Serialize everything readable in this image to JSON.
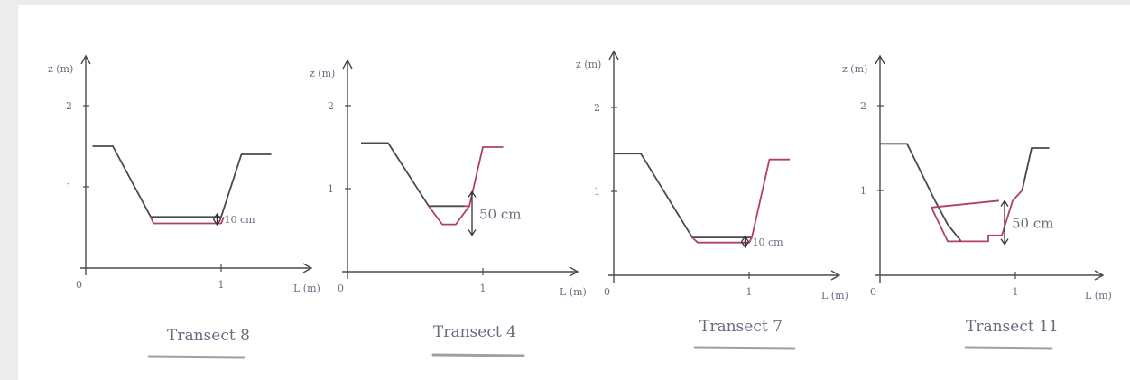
{
  "page": {
    "background": "#ececec",
    "paper": "#ffffff",
    "pencil_color": "#4a4a4a",
    "red_color": "#b0425e"
  },
  "chart_data": [
    {
      "type": "line",
      "title": "Transect 8",
      "xlabel": "L (m)",
      "ylabel": "z (m)",
      "xlim": [
        0,
        1.7
      ],
      "ylim": [
        0,
        2.4
      ],
      "x_ticks": [
        "0",
        "1"
      ],
      "y_ticks": [
        "1",
        "2"
      ],
      "series": [
        {
          "color": "#4a4a4a",
          "x": [
            0.05,
            0.2,
            0.48,
            1.0,
            1.15,
            1.37
          ],
          "y": [
            1.5,
            1.5,
            0.63,
            0.63,
            1.4,
            1.4
          ]
        },
        {
          "color": "#b0425e",
          "x": [
            0.48,
            0.5,
            1.0,
            1.02
          ],
          "y": [
            0.63,
            0.55,
            0.55,
            0.63
          ]
        }
      ],
      "annotations": [
        {
          "text": "10 cm",
          "x": 1.05,
          "y": 0.6
        }
      ]
    },
    {
      "type": "line",
      "title": "Transect 4",
      "xlabel": "L (m)",
      "ylabel": "z (m)",
      "xlim": [
        0,
        1.7
      ],
      "ylim": [
        0,
        2.4
      ],
      "x_ticks": [
        "0",
        "1"
      ],
      "y_ticks": [
        "1",
        "2"
      ],
      "series": [
        {
          "color": "#4a4a4a",
          "x": [
            0.1,
            0.3,
            0.6,
            0.86
          ],
          "y": [
            1.55,
            1.55,
            0.79,
            0.79
          ]
        },
        {
          "color": "#b0425e",
          "x": [
            0.86,
            0.9,
            1.0,
            1.15
          ],
          "y": [
            0.79,
            0.79,
            1.5,
            1.5
          ]
        },
        {
          "color": "#b0425e",
          "x": [
            0.6,
            0.7,
            0.8,
            0.9
          ],
          "y": [
            0.79,
            0.57,
            0.57,
            0.79
          ]
        }
      ],
      "annotations": [
        {
          "text": "50 cm",
          "x": 1.0,
          "y": 0.68
        }
      ]
    },
    {
      "type": "line",
      "title": "Transect 7",
      "xlabel": "L (m)",
      "ylabel": "z (m)",
      "xlim": [
        0,
        1.7
      ],
      "ylim": [
        0,
        2.4
      ],
      "x_ticks": [
        "0",
        "1"
      ],
      "y_ticks": [
        "1",
        "2"
      ],
      "series": [
        {
          "color": "#4a4a4a",
          "x": [
            0.0,
            0.2,
            0.58,
            1.02
          ],
          "y": [
            1.45,
            1.45,
            0.45,
            0.45
          ]
        },
        {
          "color": "#b0425e",
          "x": [
            0.58,
            0.62,
            1.0,
            1.02,
            1.15,
            1.3
          ],
          "y": [
            0.45,
            0.39,
            0.39,
            0.45,
            1.38,
            1.38
          ]
        }
      ],
      "annotations": [
        {
          "text": "10 cm",
          "x": 1.05,
          "y": 0.4
        }
      ]
    },
    {
      "type": "line",
      "title": "Transect 11",
      "xlabel": "L (m)",
      "ylabel": "z (m)",
      "xlim": [
        0,
        1.7
      ],
      "ylim": [
        0,
        2.4
      ],
      "x_ticks": [
        "0",
        "1"
      ],
      "y_ticks": [
        "1",
        "2"
      ],
      "series": [
        {
          "color": "#4a4a4a",
          "x": [
            0.0,
            0.2,
            0.4,
            0.5,
            0.6
          ],
          "y": [
            1.55,
            1.55,
            0.9,
            0.6,
            0.4
          ]
        },
        {
          "color": "#b0425e",
          "x": [
            0.38,
            0.88
          ],
          "y": [
            0.8,
            0.88
          ]
        },
        {
          "color": "#b0425e",
          "x": [
            0.38,
            0.5,
            0.8,
            0.8,
            0.9,
            0.98,
            1.05
          ],
          "y": [
            0.8,
            0.4,
            0.4,
            0.47,
            0.47,
            0.88,
            1.0
          ]
        },
        {
          "color": "#4a4a4a",
          "x": [
            1.05,
            1.12,
            1.25
          ],
          "y": [
            1.0,
            1.5,
            1.5
          ]
        }
      ],
      "annotations": [
        {
          "text": "50 cm",
          "x": 1.0,
          "y": 0.6
        }
      ]
    }
  ]
}
